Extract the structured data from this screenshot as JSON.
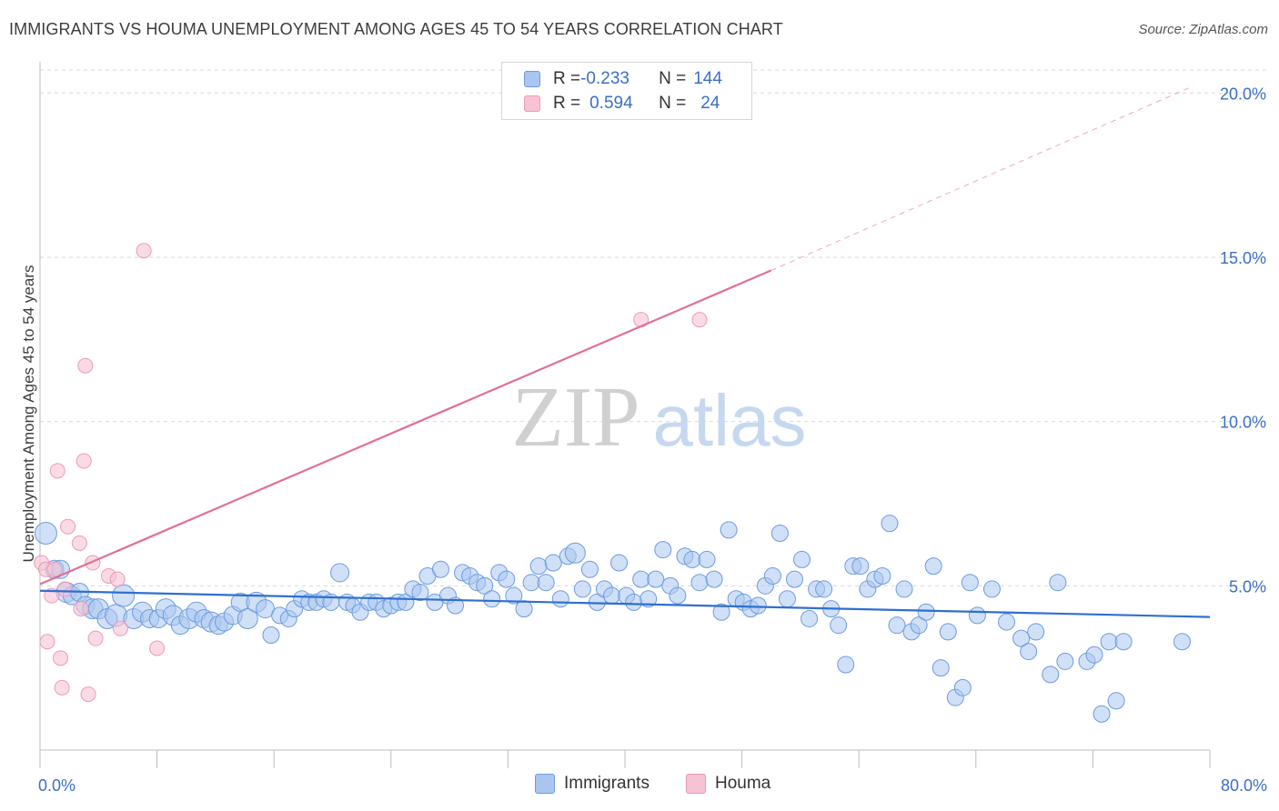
{
  "header": {
    "title": "IMMIGRANTS VS HOUMA UNEMPLOYMENT AMONG AGES 45 TO 54 YEARS CORRELATION CHART",
    "source": "Source: ZipAtlas.com"
  },
  "watermark": {
    "zip": "ZIP",
    "atlas": "atlas"
  },
  "legend_top": {
    "rows": [
      {
        "r_label": "R = ",
        "r_value": "-0.233",
        "n_label": "N = ",
        "n_value": "144"
      },
      {
        "r_label": "R = ",
        "r_value": "0.594",
        "n_label": "N = ",
        "n_value": "24"
      }
    ]
  },
  "legend_bottom": {
    "items": [
      "Immigrants",
      "Houma"
    ]
  },
  "colors": {
    "immigrants_fill": "#a9c6f0",
    "immigrants_stroke": "#6d9be0",
    "immigrants_line": "#2f6fcf",
    "houma_fill": "#f7c3d4",
    "houma_stroke": "#ec9ab6",
    "houma_line": "#e0709a",
    "tick_label": "#3a6fc4",
    "grid": "#d9d9d9"
  },
  "chart_data": {
    "type": "scatter",
    "title": "IMMIGRANTS VS HOUMA UNEMPLOYMENT AMONG AGES 45 TO 54 YEARS CORRELATION CHART",
    "xlabel": "",
    "ylabel": "Unemployment Among Ages 45 to 54 years",
    "xlim": [
      0,
      80
    ],
    "ylim": [
      0,
      20.7
    ],
    "x_tick_labels": [
      "0.0%",
      "80.0%"
    ],
    "y_ticks": [
      5,
      10,
      15,
      20
    ],
    "y_tick_labels": [
      "5.0%",
      "10.0%",
      "15.0%",
      "20.0%"
    ],
    "grid": "horizontal dashed",
    "legend_placement": "top-center",
    "series": [
      {
        "name": "Immigrants",
        "r": -0.233,
        "n": 144,
        "trend": {
          "x": [
            0,
            80
          ],
          "y": [
            4.85,
            4.05
          ]
        },
        "points": [
          [
            0.4,
            6.6,
            12
          ],
          [
            1,
            5.5,
            10
          ],
          [
            1.4,
            5.5,
            10
          ],
          [
            1.8,
            4.8,
            11
          ],
          [
            2.2,
            4.7,
            10
          ],
          [
            2.7,
            4.8,
            10
          ],
          [
            3.1,
            4.4,
            10
          ],
          [
            3.6,
            4.3,
            11
          ],
          [
            4,
            4.3,
            11
          ],
          [
            4.6,
            4,
            11
          ],
          [
            5.2,
            4.1,
            12
          ],
          [
            5.7,
            4.7,
            12
          ],
          [
            6.4,
            4,
            11
          ],
          [
            7,
            4.2,
            11
          ],
          [
            7.5,
            4,
            10
          ],
          [
            8.1,
            4,
            10
          ],
          [
            8.6,
            4.3,
            11
          ],
          [
            9.1,
            4.1,
            11
          ],
          [
            9.6,
            3.8,
            10
          ],
          [
            10.2,
            4,
            11
          ],
          [
            10.7,
            4.2,
            11
          ],
          [
            11.2,
            4,
            10
          ],
          [
            11.7,
            3.9,
            11
          ],
          [
            12.2,
            3.8,
            10
          ],
          [
            12.6,
            3.9,
            10
          ],
          [
            13.2,
            4.1,
            10
          ],
          [
            13.7,
            4.5,
            10
          ],
          [
            14.2,
            4,
            11
          ],
          [
            14.8,
            4.5,
            11
          ],
          [
            15.4,
            4.3,
            10
          ],
          [
            15.8,
            3.5,
            9
          ],
          [
            16.4,
            4.1,
            9
          ],
          [
            17,
            4,
            9
          ],
          [
            17.4,
            4.3,
            9
          ],
          [
            17.9,
            4.6,
            9
          ],
          [
            18.4,
            4.5,
            9
          ],
          [
            18.9,
            4.5,
            9
          ],
          [
            19.4,
            4.6,
            9
          ],
          [
            19.9,
            4.5,
            9
          ],
          [
            20.5,
            5.4,
            10
          ],
          [
            21,
            4.5,
            9
          ],
          [
            21.4,
            4.4,
            8
          ],
          [
            21.9,
            4.2,
            9
          ],
          [
            22.5,
            4.5,
            9
          ],
          [
            23,
            4.5,
            9
          ],
          [
            23.5,
            4.3,
            9
          ],
          [
            24,
            4.4,
            9
          ],
          [
            24.5,
            4.5,
            9
          ],
          [
            25,
            4.5,
            9
          ],
          [
            25.5,
            4.9,
            9
          ],
          [
            26,
            4.8,
            9
          ],
          [
            26.5,
            5.3,
            9
          ],
          [
            27,
            4.5,
            9
          ],
          [
            27.4,
            5.5,
            9
          ],
          [
            27.9,
            4.7,
            9
          ],
          [
            28.4,
            4.4,
            9
          ],
          [
            28.9,
            5.4,
            9
          ],
          [
            29.4,
            5.3,
            9
          ],
          [
            29.9,
            5.1,
            9
          ],
          [
            30.4,
            5,
            9
          ],
          [
            30.9,
            4.6,
            9
          ],
          [
            31.4,
            5.4,
            9
          ],
          [
            31.9,
            5.2,
            9
          ],
          [
            32.4,
            4.7,
            9
          ],
          [
            33.1,
            4.3,
            9
          ],
          [
            33.6,
            5.1,
            9
          ],
          [
            34.1,
            5.6,
            9
          ],
          [
            34.6,
            5.1,
            9
          ],
          [
            35.1,
            5.7,
            9
          ],
          [
            35.6,
            4.6,
            9
          ],
          [
            36.1,
            5.9,
            9
          ],
          [
            36.6,
            6,
            11
          ],
          [
            37.1,
            4.9,
            9
          ],
          [
            37.6,
            5.5,
            9
          ],
          [
            38.1,
            4.5,
            9
          ],
          [
            38.6,
            4.9,
            9
          ],
          [
            39.1,
            4.7,
            9
          ],
          [
            39.6,
            5.7,
            9
          ],
          [
            40.1,
            4.7,
            9
          ],
          [
            40.6,
            4.5,
            9
          ],
          [
            41.1,
            5.2,
            9
          ],
          [
            41.6,
            4.6,
            9
          ],
          [
            42.1,
            5.2,
            9
          ],
          [
            42.6,
            6.1,
            9
          ],
          [
            43.1,
            5,
            9
          ],
          [
            43.6,
            4.7,
            9
          ],
          [
            44.1,
            5.9,
            9
          ],
          [
            44.6,
            5.8,
            9
          ],
          [
            45.1,
            5.1,
            9
          ],
          [
            45.6,
            5.8,
            9
          ],
          [
            46.1,
            5.2,
            9
          ],
          [
            46.6,
            4.2,
            9
          ],
          [
            47.1,
            6.7,
            9
          ],
          [
            47.6,
            4.6,
            9
          ],
          [
            48.1,
            4.5,
            9
          ],
          [
            48.6,
            4.3,
            9
          ],
          [
            49.1,
            4.4,
            9
          ],
          [
            49.6,
            5,
            9
          ],
          [
            50.1,
            5.3,
            9
          ],
          [
            50.6,
            6.6,
            9
          ],
          [
            51.1,
            4.6,
            9
          ],
          [
            51.6,
            5.2,
            9
          ],
          [
            52.1,
            5.8,
            9
          ],
          [
            52.6,
            4,
            9
          ],
          [
            53.1,
            4.9,
            9
          ],
          [
            53.6,
            4.9,
            9
          ],
          [
            54.1,
            4.3,
            9
          ],
          [
            54.6,
            3.8,
            9
          ],
          [
            55.1,
            2.6,
            9
          ],
          [
            55.6,
            5.6,
            9
          ],
          [
            56.1,
            5.6,
            9
          ],
          [
            56.6,
            4.9,
            9
          ],
          [
            57.1,
            5.2,
            9
          ],
          [
            57.6,
            5.3,
            9
          ],
          [
            58.1,
            6.9,
            9
          ],
          [
            58.6,
            3.8,
            9
          ],
          [
            59.1,
            4.9,
            9
          ],
          [
            59.6,
            3.6,
            9
          ],
          [
            60.1,
            3.8,
            9
          ],
          [
            60.6,
            4.2,
            9
          ],
          [
            61.1,
            5.6,
            9
          ],
          [
            61.6,
            2.5,
            9
          ],
          [
            62.1,
            3.6,
            9
          ],
          [
            62.6,
            1.6,
            9
          ],
          [
            63.1,
            1.9,
            9
          ],
          [
            63.6,
            5.1,
            9
          ],
          [
            64.1,
            4.1,
            9
          ],
          [
            65.1,
            4.9,
            9
          ],
          [
            66.1,
            3.9,
            9
          ],
          [
            67.1,
            3.4,
            9
          ],
          [
            67.6,
            3,
            9
          ],
          [
            68.1,
            3.6,
            9
          ],
          [
            69.1,
            2.3,
            9
          ],
          [
            69.6,
            5.1,
            9
          ],
          [
            70.1,
            2.7,
            9
          ],
          [
            71.6,
            2.7,
            9
          ],
          [
            72.1,
            2.9,
            9
          ],
          [
            72.6,
            1.1,
            9
          ],
          [
            73.1,
            3.3,
            9
          ],
          [
            73.6,
            1.5,
            9
          ],
          [
            74.1,
            3.3,
            9
          ],
          [
            78.1,
            3.3,
            9
          ]
        ]
      },
      {
        "name": "Houma",
        "r": 0.594,
        "n": 24,
        "trend": {
          "x": [
            0,
            50
          ],
          "y": [
            5.05,
            14.6
          ]
        },
        "trend_extension": {
          "x": [
            50,
            78.8
          ],
          "y": [
            14.6,
            20.2
          ]
        },
        "points": [
          [
            0.1,
            5.7
          ],
          [
            0.4,
            5.5
          ],
          [
            0.5,
            3.3
          ],
          [
            0.8,
            4.7
          ],
          [
            1,
            5.5
          ],
          [
            1.2,
            8.5
          ],
          [
            1.4,
            2.8
          ],
          [
            1.5,
            1.9
          ],
          [
            1.7,
            4.9
          ],
          [
            1.9,
            6.8
          ],
          [
            2.7,
            6.3
          ],
          [
            2.8,
            4.3
          ],
          [
            3,
            8.8
          ],
          [
            3.1,
            11.7
          ],
          [
            3.3,
            1.7
          ],
          [
            3.6,
            5.7
          ],
          [
            3.8,
            3.4
          ],
          [
            4.7,
            5.3
          ],
          [
            5.3,
            5.2
          ],
          [
            5.5,
            3.7
          ],
          [
            7.1,
            15.2
          ],
          [
            8,
            3.1
          ],
          [
            41.1,
            13.1
          ],
          [
            45.1,
            13.1
          ]
        ]
      }
    ]
  }
}
